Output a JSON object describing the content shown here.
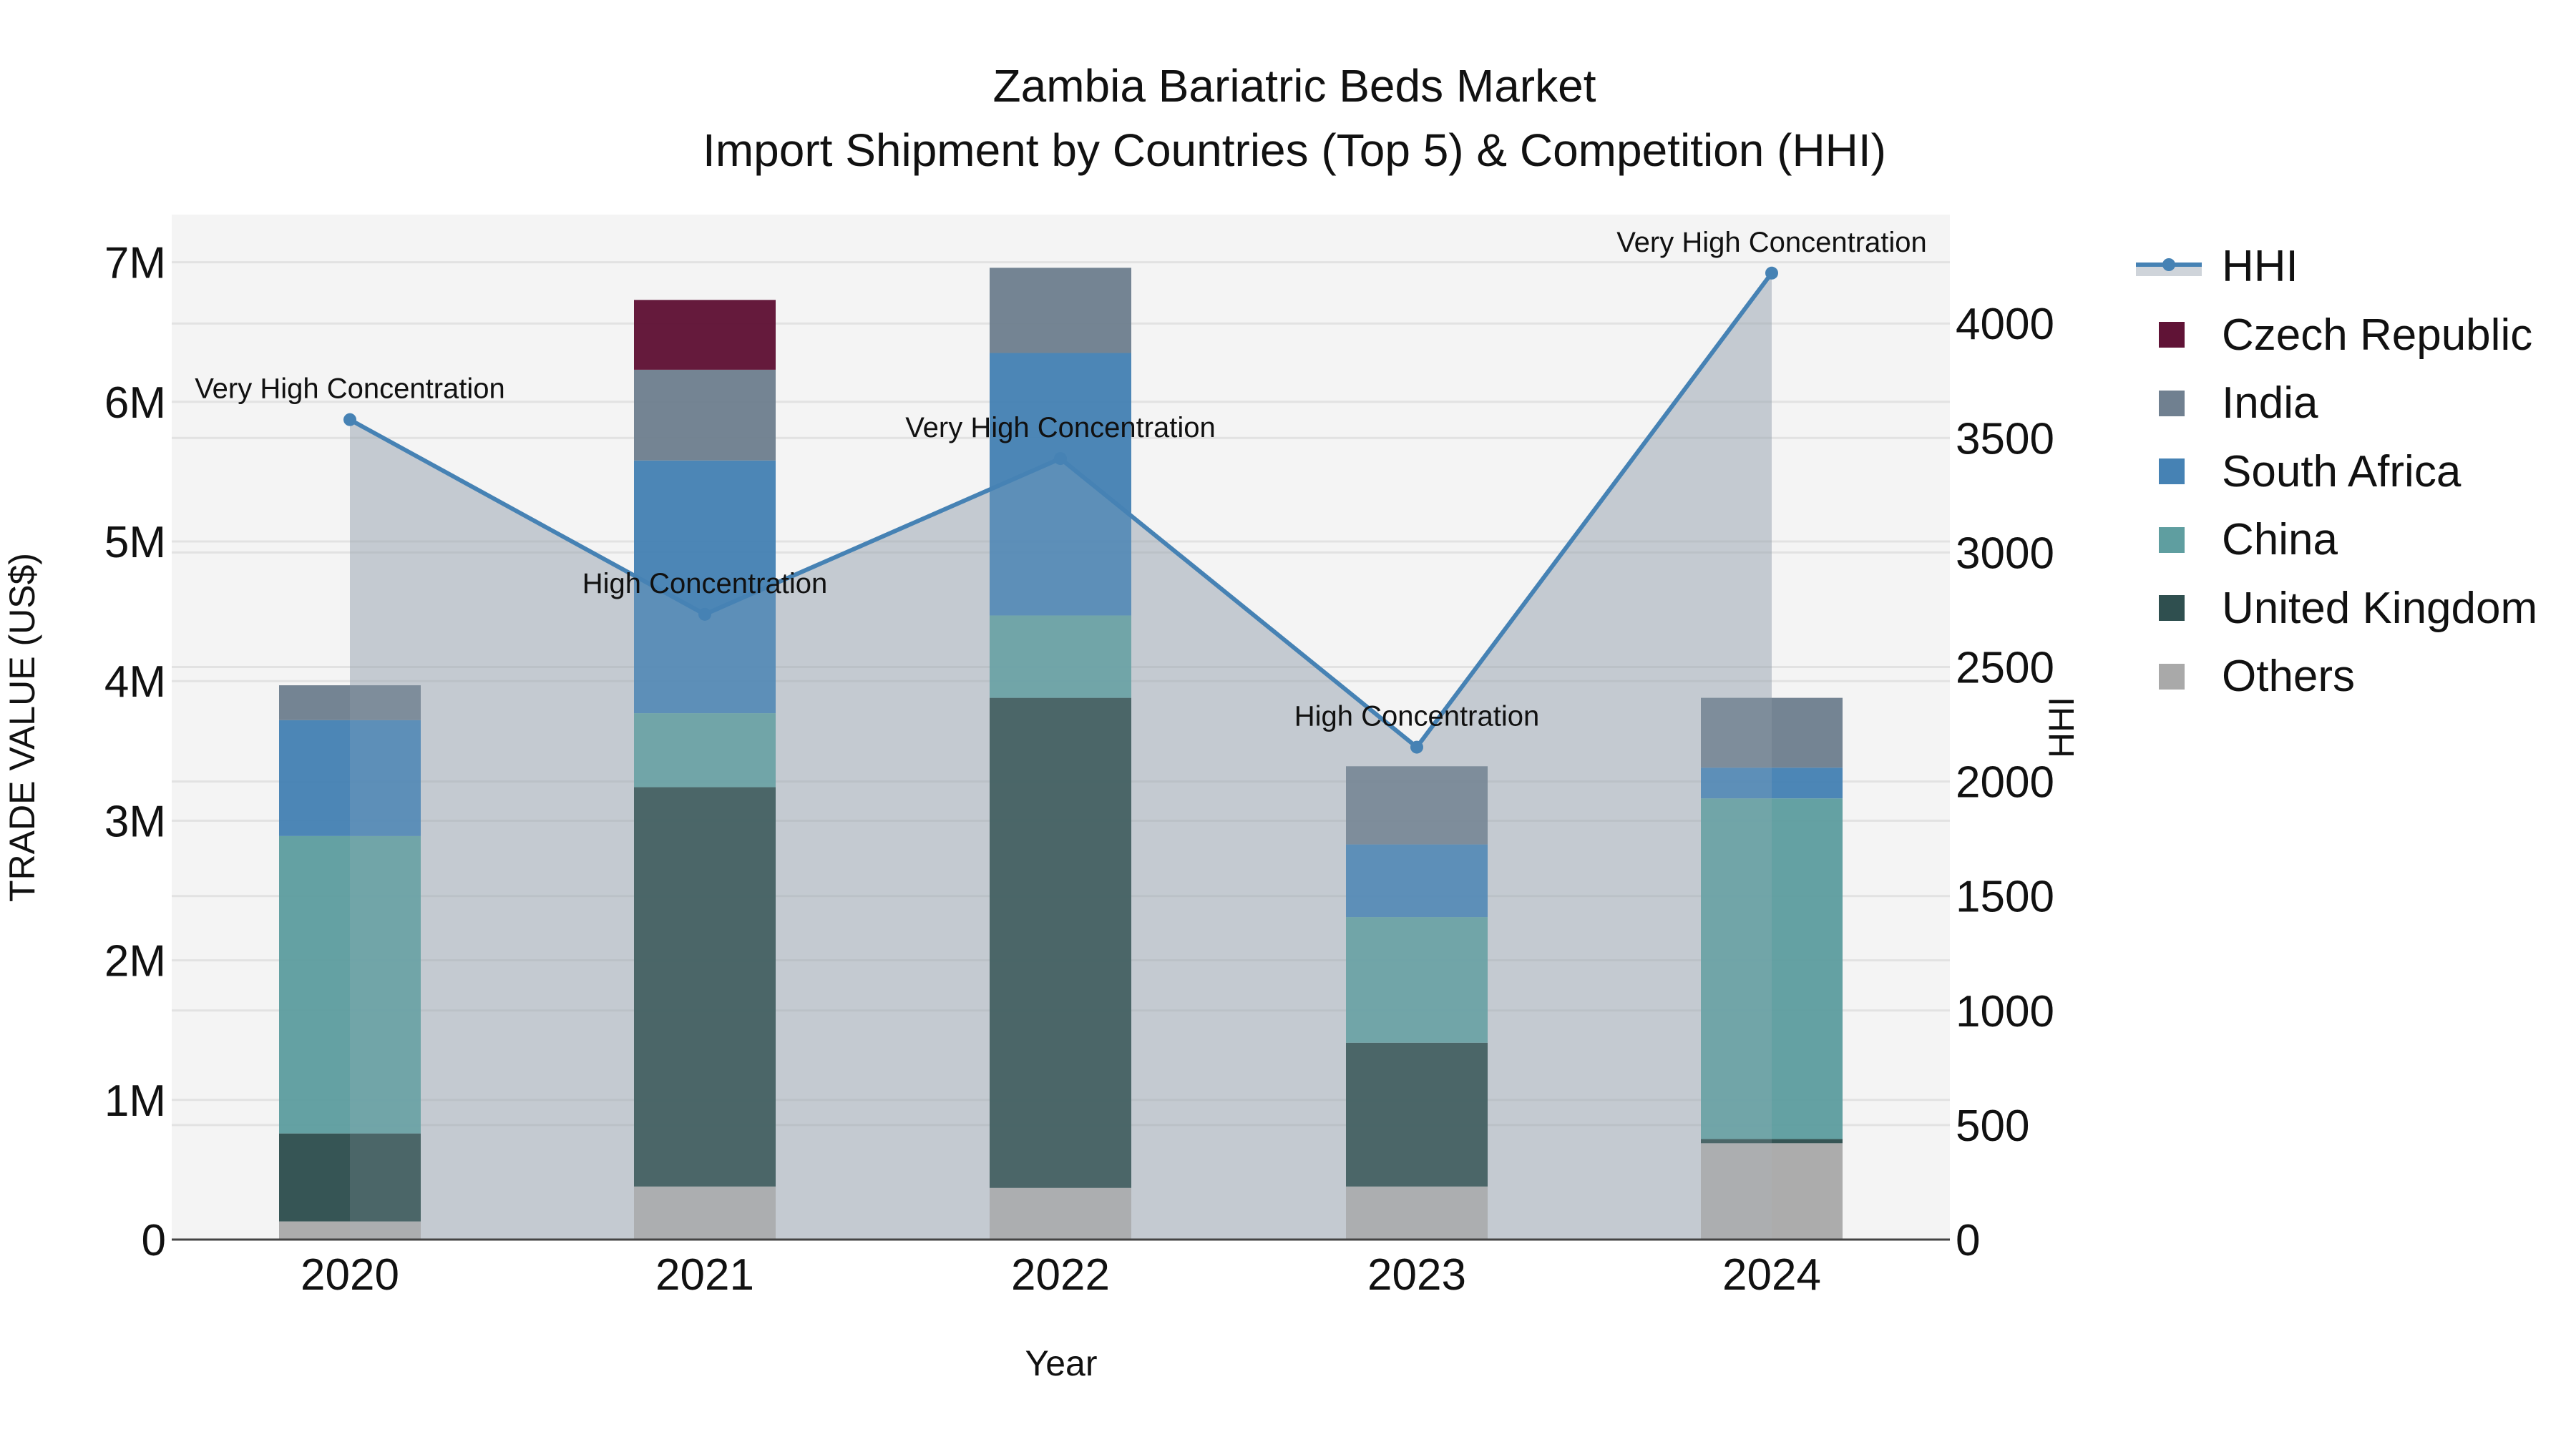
{
  "chart_data": {
    "type": "bar",
    "subtype": "stacked bar with line (secondary axis) and area fill",
    "title": "Zambia Bariatric Beds Market",
    "subtitle": "Import Shipment by Countries (Top 5) & Competition (HHI)",
    "xlabel": "Year",
    "ylabel": "TRADE VALUE (US$)",
    "y2label": "HHI",
    "categories": [
      "2020",
      "2021",
      "2022",
      "2023",
      "2024"
    ],
    "ylim": [
      0,
      7300000
    ],
    "y_ticks": [
      "0",
      "1M",
      "2M",
      "3M",
      "4M",
      "5M",
      "6M",
      "7M"
    ],
    "y2lim": [
      0,
      4500
    ],
    "y2_ticks": [
      "0",
      "500",
      "1000",
      "1500",
      "2000",
      "2500",
      "3000",
      "3500",
      "4000"
    ],
    "grid": true,
    "legend_position": "right",
    "series": [
      {
        "name": "Others",
        "color": "#A9A9A9",
        "values": [
          130000,
          380000,
          370000,
          380000,
          690000
        ]
      },
      {
        "name": "United Kingdom",
        "color": "#2F4F4F",
        "values": [
          630000,
          2860000,
          3510000,
          1030000,
          30000
        ]
      },
      {
        "name": "China",
        "color": "#5F9EA0",
        "values": [
          2130000,
          530000,
          590000,
          900000,
          2440000
        ]
      },
      {
        "name": "South Africa",
        "color": "#4682B4",
        "values": [
          830000,
          1810000,
          1880000,
          520000,
          220000
        ]
      },
      {
        "name": "India",
        "color": "#708090",
        "values": [
          250000,
          650000,
          610000,
          560000,
          500000
        ]
      },
      {
        "name": "Czech Republic",
        "color": "#601336",
        "values": [
          0,
          500000,
          0,
          0,
          0
        ]
      }
    ],
    "line_series": {
      "name": "HHI",
      "axis": "y2",
      "color": "#4682B4",
      "fill_color": "rgba(112,128,144,0.35)",
      "values": [
        3580,
        2730,
        3410,
        2150,
        4220
      ],
      "annotations": [
        "Very High Concentration",
        "High Concentration",
        "Very High Concentration",
        "High Concentration",
        "Very High Concentration"
      ]
    }
  },
  "legend": {
    "items": [
      {
        "label": "HHI",
        "kind": "line",
        "color": "#4682B4"
      },
      {
        "label": "Czech Republic",
        "kind": "box",
        "color": "#601336"
      },
      {
        "label": "India",
        "kind": "box",
        "color": "#708090"
      },
      {
        "label": "South Africa",
        "kind": "box",
        "color": "#4682B4"
      },
      {
        "label": "China",
        "kind": "box",
        "color": "#5F9EA0"
      },
      {
        "label": "United Kingdom",
        "kind": "box",
        "color": "#2F4F4F"
      },
      {
        "label": "Others",
        "kind": "box",
        "color": "#A9A9A9"
      }
    ]
  }
}
